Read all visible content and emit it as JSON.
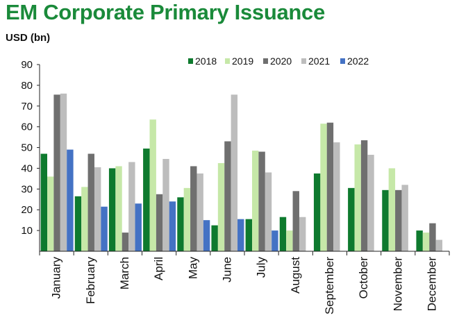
{
  "chart_data": {
    "type": "bar",
    "title": "EM Corporate Primary Issuance",
    "ylabel": "USD (bn)",
    "xlabel": "",
    "ylim": [
      0,
      90
    ],
    "yticks": [
      10,
      20,
      30,
      40,
      50,
      60,
      70,
      80,
      90
    ],
    "grid": false,
    "legend_position": "top-right",
    "categories": [
      "January",
      "February",
      "March",
      "April",
      "May",
      "June",
      "July",
      "August",
      "September",
      "October",
      "November",
      "December"
    ],
    "series": [
      {
        "name": "2018",
        "color": "#0e7a2e",
        "values": [
          47,
          26.5,
          40,
          49.5,
          26,
          12.5,
          15.5,
          16.5,
          37.5,
          30.5,
          29.5,
          10
        ]
      },
      {
        "name": "2019",
        "color": "#c6e8a8",
        "values": [
          36,
          31,
          41,
          63.5,
          30.5,
          42.5,
          48.5,
          10,
          61.5,
          51.5,
          40,
          9
        ]
      },
      {
        "name": "2020",
        "color": "#6f6f6f",
        "values": [
          75.5,
          47,
          9,
          27.5,
          41,
          53,
          48,
          29,
          62,
          53.5,
          29.5,
          13.5
        ]
      },
      {
        "name": "2021",
        "color": "#bdbdbd",
        "values": [
          76,
          40.5,
          43,
          44.5,
          37.5,
          75.5,
          38,
          16.5,
          52.5,
          46.5,
          32,
          5.5
        ]
      },
      {
        "name": "2022",
        "color": "#4472c4",
        "values": [
          49,
          21.5,
          23,
          24,
          15,
          15.5,
          10,
          null,
          null,
          null,
          null,
          null
        ]
      }
    ]
  }
}
